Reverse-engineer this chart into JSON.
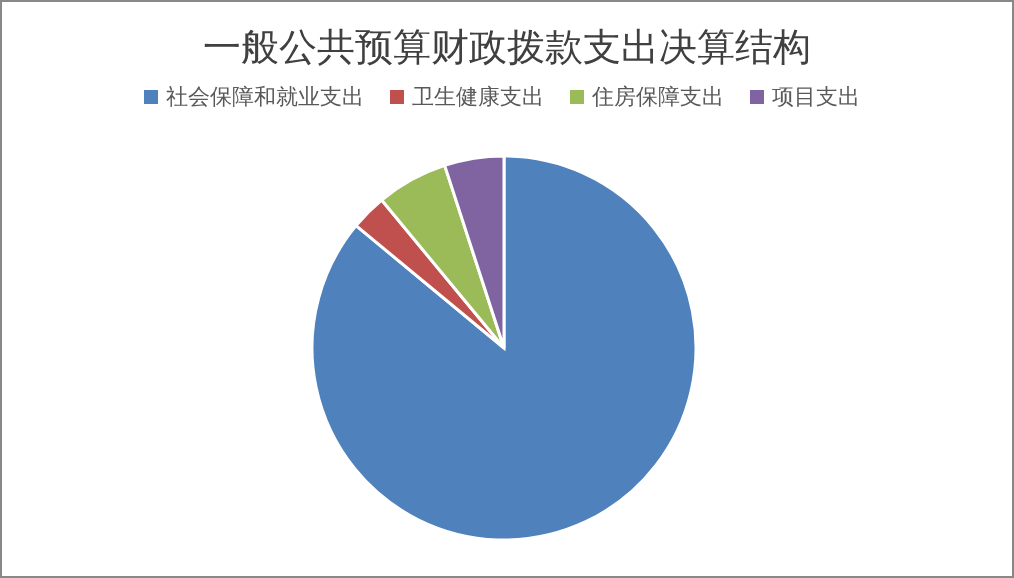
{
  "chart_data": {
    "type": "pie",
    "title": "一般公共预算财政拨款支出决算结构",
    "categories": [
      "社会保障和就业支出",
      "卫生健康支出",
      "住房保障支出",
      "项目支出"
    ],
    "values": [
      86,
      3,
      6,
      5
    ],
    "colors": [
      "#4f81bd",
      "#c0504d",
      "#9bbb59",
      "#8064a2"
    ],
    "legend": "top"
  }
}
